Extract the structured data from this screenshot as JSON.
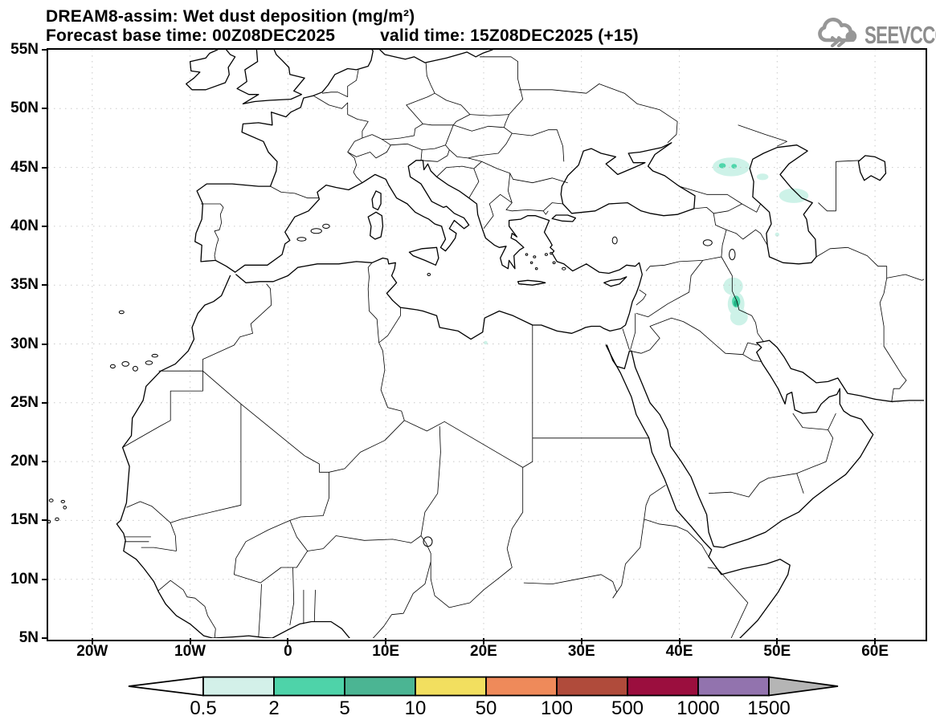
{
  "header": {
    "title": "DREAM8-assim: Wet dust deposition (mg/m²)",
    "base_time": "Forecast base time: 00Z08DEC2025",
    "valid_time": "valid time: 15Z08DEC2025 (+15)"
  },
  "logo": {
    "text": "SEEVCCC"
  },
  "map": {
    "lon_min": -24.5,
    "lon_max": 65,
    "lat_min": 5,
    "lat_max": 55,
    "lat_ticks": [
      {
        "label": "55N",
        "value": 55
      },
      {
        "label": "50N",
        "value": 50
      },
      {
        "label": "45N",
        "value": 45
      },
      {
        "label": "40N",
        "value": 40
      },
      {
        "label": "35N",
        "value": 35
      },
      {
        "label": "30N",
        "value": 30
      },
      {
        "label": "25N",
        "value": 25
      },
      {
        "label": "20N",
        "value": 20
      },
      {
        "label": "15N",
        "value": 15
      },
      {
        "label": "10N",
        "value": 10
      },
      {
        "label": "5N",
        "value": 5
      }
    ],
    "lon_ticks": [
      {
        "label": "20W",
        "value": -20
      },
      {
        "label": "10W",
        "value": -10
      },
      {
        "label": "0",
        "value": 0
      },
      {
        "label": "10E",
        "value": 10
      },
      {
        "label": "20E",
        "value": 20
      },
      {
        "label": "30E",
        "value": 30
      },
      {
        "label": "40E",
        "value": 40
      },
      {
        "label": "50E",
        "value": 50
      },
      {
        "label": "60E",
        "value": 60
      }
    ],
    "grid_lats": [
      10,
      15,
      20,
      25,
      30,
      35,
      40,
      45,
      50
    ],
    "grid_lons": [
      -20,
      -10,
      0,
      10,
      20,
      30,
      40,
      50,
      60
    ],
    "grid_color": "#c9c9c9",
    "line_color": "#000000"
  },
  "deposition": {
    "level_colors": {
      "light": "#cdf2e8",
      "mid": "#4fd6ab",
      "dark": "#21b184"
    },
    "patches": [
      {
        "lon": 45.3,
        "lat": 45.05,
        "rx": 1.9,
        "ry": 0.8,
        "level": "light"
      },
      {
        "lon": 44.4,
        "lat": 45.15,
        "rx": 0.35,
        "ry": 0.22,
        "level": "mid"
      },
      {
        "lon": 45.6,
        "lat": 45.1,
        "rx": 0.28,
        "ry": 0.2,
        "level": "mid"
      },
      {
        "lon": 48.5,
        "lat": 44.2,
        "rx": 0.6,
        "ry": 0.28,
        "level": "light"
      },
      {
        "lon": 51.7,
        "lat": 42.6,
        "rx": 1.5,
        "ry": 0.62,
        "level": "light"
      },
      {
        "lon": 50.0,
        "lat": 39.3,
        "rx": 0.22,
        "ry": 0.18,
        "level": "light"
      },
      {
        "lon": 45.5,
        "lat": 34.9,
        "rx": 1.0,
        "ry": 0.75,
        "level": "light"
      },
      {
        "lon": 45.8,
        "lat": 33.4,
        "rx": 0.85,
        "ry": 1.0,
        "level": "light"
      },
      {
        "lon": 46.1,
        "lat": 32.3,
        "rx": 0.9,
        "ry": 0.72,
        "level": "light"
      },
      {
        "lon": 45.8,
        "lat": 33.6,
        "rx": 0.42,
        "ry": 0.5,
        "level": "mid"
      },
      {
        "lon": 45.75,
        "lat": 33.45,
        "rx": 0.2,
        "ry": 0.26,
        "level": "dark"
      },
      {
        "lon": 20.2,
        "lat": 30.1,
        "rx": 0.2,
        "ry": 0.15,
        "level": "light"
      }
    ]
  },
  "colorbar": {
    "values": [
      "0.5",
      "2",
      "5",
      "10",
      "50",
      "100",
      "500",
      "1000",
      "1500"
    ],
    "segment_colors": [
      "#d3f0e9",
      "#4ed3a9",
      "#4bb593",
      "#f2df5f",
      "#ef8a5a",
      "#b04b3b",
      "#9b0e3e",
      "#9273ae"
    ],
    "left_arrow_color": "#ffffff",
    "right_arrow_color": "#b5b5b5",
    "outline_color": "#000000"
  }
}
